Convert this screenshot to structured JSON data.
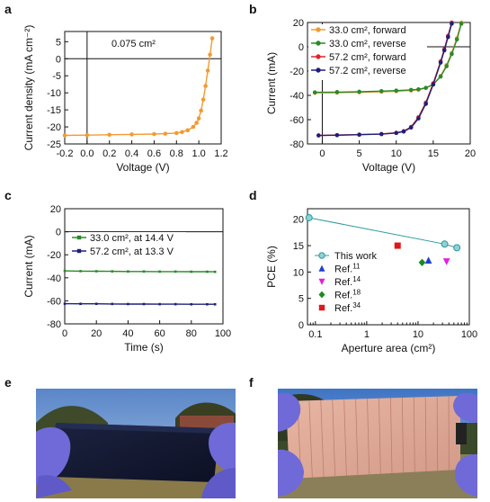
{
  "panels": {
    "a": {
      "letter": "a",
      "annotation": "0.075 cm²"
    },
    "b": {
      "letter": "b"
    },
    "c": {
      "letter": "c"
    },
    "d": {
      "letter": "d"
    },
    "e": {
      "letter": "e"
    },
    "f": {
      "letter": "f"
    }
  },
  "colors": {
    "orange": "#f29b33",
    "green": "#2a8a2a",
    "red": "#e0262a",
    "navy": "#1f1f7a",
    "teal": "#2a9aa0",
    "blue": "#1f3fcf",
    "magenta": "#e020e0",
    "darkgreen": "#1e8a1e",
    "red2": "#e01818"
  },
  "chart_data": [
    {
      "id": "a",
      "type": "line",
      "xlabel": "Voltage (V)",
      "ylabel": "Current density (mA cm⁻²)",
      "xlim": [
        -0.2,
        1.2
      ],
      "ylim": [
        -25,
        8
      ],
      "xticks": [
        -0.2,
        0.0,
        0.2,
        0.4,
        0.6,
        0.8,
        1.0,
        1.2
      ],
      "xtick_labels": [
        "-0.2",
        "0.0",
        "0.2",
        "0.4",
        "0.6",
        "0.8",
        "1.0",
        "1.2"
      ],
      "yticks": [
        -25,
        -20,
        -15,
        -10,
        -5,
        0,
        5
      ],
      "ytick_labels": [
        "-25",
        "-20",
        "-15",
        "-10",
        "-5",
        "0",
        "5"
      ],
      "series": [
        {
          "color": "orange",
          "marker": "circle",
          "x": [
            -0.2,
            0.0,
            0.2,
            0.4,
            0.6,
            0.7,
            0.8,
            0.85,
            0.9,
            0.95,
            0.98,
            1.0,
            1.02,
            1.04,
            1.06,
            1.08,
            1.1,
            1.12
          ],
          "y": [
            -22.5,
            -22.4,
            -22.3,
            -22.2,
            -22.1,
            -22.0,
            -21.8,
            -21.5,
            -21.0,
            -20.0,
            -18.8,
            -17.5,
            -15.2,
            -12.0,
            -8.0,
            -3.5,
            1.2,
            6.0
          ]
        }
      ]
    },
    {
      "id": "b",
      "type": "line",
      "xlabel": "Voltage (V)",
      "ylabel": "Current (mA)",
      "xlim": [
        -2,
        20
      ],
      "ylim": [
        -80,
        20
      ],
      "xticks": [
        0,
        5,
        10,
        15,
        20
      ],
      "xtick_labels": [
        "0",
        "5",
        "10",
        "15",
        "20"
      ],
      "yticks": [
        -80,
        -60,
        -40,
        -20,
        0,
        20
      ],
      "ytick_labels": [
        "-80",
        "-60",
        "-40",
        "-20",
        "0",
        "20"
      ],
      "legend_position": "top-right",
      "series": [
        {
          "name": "33.0 cm², forward",
          "color": "orange",
          "marker": "circle",
          "x": [
            -1,
            2,
            5,
            8,
            10,
            12,
            13,
            14,
            15,
            16,
            16.8,
            17.5,
            18.2,
            18.8
          ],
          "y": [
            -38,
            -37.8,
            -37.5,
            -37,
            -36.6,
            -36,
            -35.4,
            -34,
            -31,
            -24,
            -15,
            -5,
            7,
            20
          ]
        },
        {
          "name": "33.0 cm², reverse",
          "color": "green",
          "marker": "circle",
          "x": [
            -1,
            2,
            5,
            8,
            10,
            12,
            13,
            14,
            15,
            16,
            16.8,
            17.5,
            18.2,
            18.8
          ],
          "y": [
            -37.5,
            -37.3,
            -37,
            -36.5,
            -36.1,
            -35.5,
            -35,
            -33.8,
            -31,
            -24.5,
            -16,
            -6,
            6,
            19
          ]
        },
        {
          "name": "57.2 cm², forward",
          "color": "red",
          "marker": "circle",
          "x": [
            -0.5,
            2,
            5,
            8,
            10,
            11,
            12,
            13,
            14,
            15,
            16,
            16.5,
            17,
            17.5
          ],
          "y": [
            -73,
            -72.7,
            -72.3,
            -71.8,
            -70.8,
            -69.5,
            -66,
            -58,
            -46,
            -30,
            -12,
            -2,
            9,
            20
          ]
        },
        {
          "name": "57.2 cm², reverse",
          "color": "navy",
          "marker": "circle",
          "x": [
            -0.5,
            2,
            5,
            8,
            10,
            11,
            12,
            13,
            14,
            15,
            16,
            16.5,
            17,
            17.5
          ],
          "y": [
            -73,
            -72.8,
            -72.4,
            -71.9,
            -71,
            -69.8,
            -66.5,
            -59,
            -47,
            -31,
            -13,
            -3,
            8,
            19
          ]
        }
      ]
    },
    {
      "id": "c",
      "type": "line",
      "xlabel": "Time (s)",
      "ylabel": "Current (mA)",
      "xlim": [
        0,
        100
      ],
      "ylim": [
        -80,
        20
      ],
      "xticks": [
        0,
        20,
        40,
        60,
        80,
        100
      ],
      "xtick_labels": [
        "0",
        "20",
        "40",
        "60",
        "80",
        "100"
      ],
      "yticks": [
        -80,
        -60,
        -40,
        -20,
        0,
        20
      ],
      "ytick_labels": [
        "-80",
        "-60",
        "-40",
        "-20",
        "0",
        "20"
      ],
      "legend_position": "top-right",
      "series": [
        {
          "name": "33.0 cm², at 14.4 V",
          "color": "green",
          "marker": "square",
          "x": [
            0,
            10,
            20,
            30,
            40,
            50,
            60,
            70,
            80,
            90,
            95
          ],
          "y": [
            -34,
            -34.2,
            -34.3,
            -34.4,
            -34.5,
            -34.5,
            -34.6,
            -34.6,
            -34.7,
            -34.7,
            -34.8
          ]
        },
        {
          "name": "57.2 cm², at 13.3 V",
          "color": "navy",
          "marker": "square",
          "x": [
            0,
            10,
            20,
            30,
            40,
            50,
            60,
            70,
            80,
            90,
            95
          ],
          "y": [
            -62.5,
            -62.6,
            -62.6,
            -62.7,
            -62.8,
            -62.8,
            -62.9,
            -62.9,
            -63,
            -63,
            -63
          ]
        }
      ]
    },
    {
      "id": "d",
      "type": "scatter",
      "xlabel": "Aperture area (cm²)",
      "ylabel": "PCE (%)",
      "xscale": "log",
      "xlim": [
        0.07,
        100
      ],
      "ylim": [
        0,
        22
      ],
      "xticks": [
        0.1,
        1,
        10,
        100
      ],
      "xtick_labels": [
        "0.1",
        "1",
        "10",
        "100"
      ],
      "yticks": [
        0,
        5,
        10,
        15,
        20
      ],
      "ytick_labels": [
        "0",
        "5",
        "10",
        "15",
        "20"
      ],
      "legend_position": "left",
      "series": [
        {
          "name": "This work",
          "color": "teal",
          "marker": "circle",
          "line": true,
          "x": [
            0.075,
            33.0,
            57.2
          ],
          "y": [
            20.3,
            15.3,
            14.6
          ]
        },
        {
          "name": "Ref.",
          "superscript": "11",
          "color": "blue",
          "marker": "triangle-up",
          "x": [
            16.0
          ],
          "y": [
            12.2
          ]
        },
        {
          "name": "Ref.",
          "superscript": "14",
          "color": "magenta",
          "marker": "triangle-down",
          "x": [
            36.0
          ],
          "y": [
            12.0
          ]
        },
        {
          "name": "Ref.",
          "superscript": "18",
          "color": "darkgreen",
          "marker": "diamond",
          "x": [
            12.0
          ],
          "y": [
            11.8
          ]
        },
        {
          "name": "Ref.",
          "superscript": "34",
          "color": "red2",
          "marker": "square",
          "x": [
            4.0
          ],
          "y": [
            15.0
          ]
        }
      ]
    }
  ]
}
